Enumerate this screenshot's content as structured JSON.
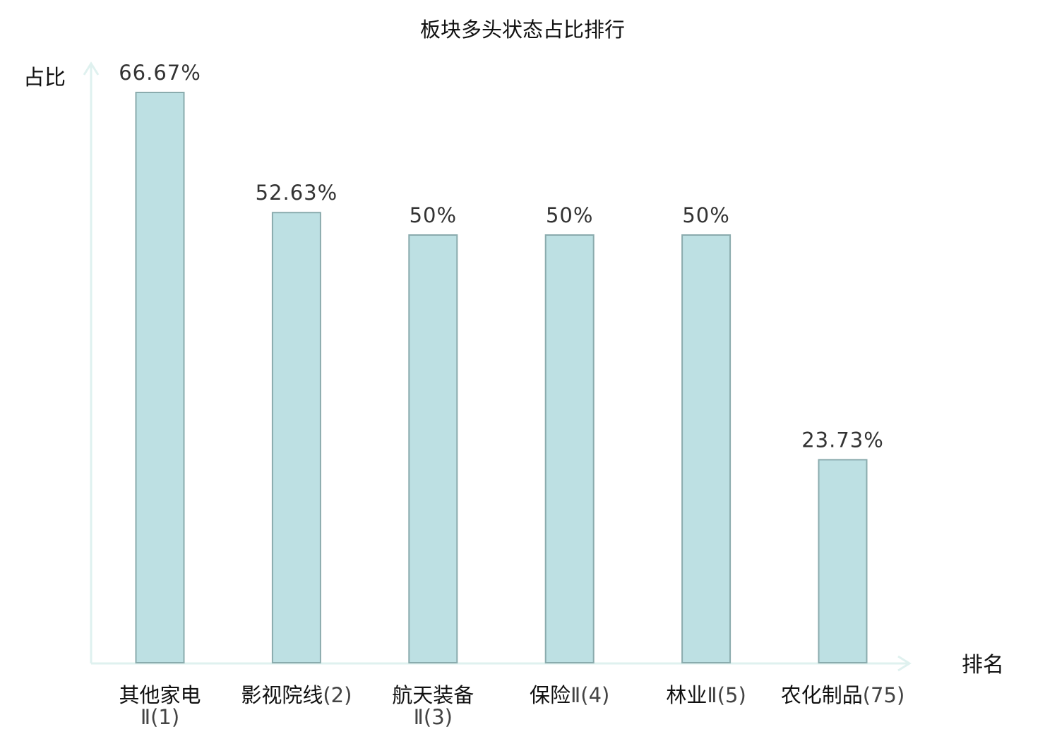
{
  "chart_data": {
    "type": "bar",
    "title": "板块多头状态占比排行",
    "ylabel": "占比",
    "xlabel": "排名",
    "ylim": [
      0,
      70
    ],
    "grid": false,
    "categories": [
      {
        "name": "其他家电",
        "rank": "Ⅱ(1)"
      },
      {
        "name": "影视院线",
        "rank": "(2)"
      },
      {
        "name": "航天装备",
        "rank": "Ⅱ(3)"
      },
      {
        "name": "保险",
        "rank": "Ⅱ(4)"
      },
      {
        "name": "林业",
        "rank": "Ⅱ(5)"
      },
      {
        "name": "农化制品",
        "rank": "(75)"
      }
    ],
    "values": [
      66.67,
      52.63,
      50,
      50,
      50,
      23.73
    ],
    "value_labels": [
      "66.67%",
      "52.63%",
      "50%",
      "50%",
      "50%",
      "23.73%"
    ],
    "colors": {
      "bar_fill": "#bde0e3",
      "bar_stroke": "#8aabad",
      "axis": "#dff1ef",
      "highlight_label": "#dd0000"
    },
    "highlight_index": 5
  }
}
